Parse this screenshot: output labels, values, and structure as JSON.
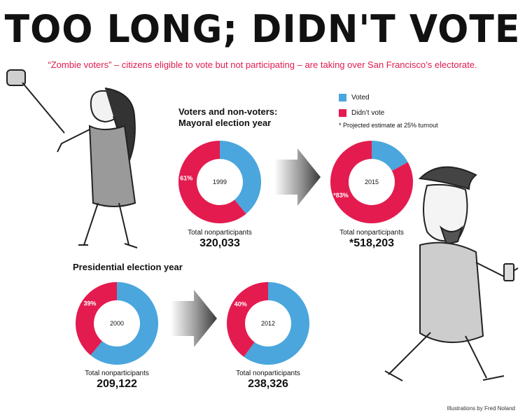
{
  "title": "TOO LONG; DIDN'T VOTE",
  "subtitle": "“Zombie voters” – citizens eligible to vote but not participating – are taking over San Francisco’s electorate.",
  "colors": {
    "voted": "#4aa6dd",
    "didnt_vote": "#e41b4f",
    "arrow": "#555555"
  },
  "legend": {
    "voted": "Voted",
    "didnt_vote": "Didn’t vote",
    "note": "* Projected estimate at 25% turnout"
  },
  "sections": {
    "mayoral": "Voters and non-voters: Mayoral election year",
    "presidential": "Presidential election year"
  },
  "total_label": "Total nonparticipants",
  "credit": "Illustrations by Fred Noland",
  "chart_data": [
    {
      "type": "pie",
      "group": "Mayoral election year",
      "year": "1999",
      "categories": [
        "Voted",
        "Didn’t vote"
      ],
      "values": [
        39,
        61
      ],
      "slice_labels": [
        "",
        "61%"
      ],
      "total_nonparticipants": "320,033"
    },
    {
      "type": "pie",
      "group": "Mayoral election year",
      "year": "2015",
      "categories": [
        "Voted",
        "Didn’t vote"
      ],
      "values": [
        17,
        83
      ],
      "slice_labels": [
        "",
        "*83%"
      ],
      "total_nonparticipants": "*518,203"
    },
    {
      "type": "pie",
      "group": "Presidential election year",
      "year": "2000",
      "categories": [
        "Voted",
        "Didn’t vote"
      ],
      "values": [
        61,
        39
      ],
      "slice_labels": [
        "",
        "39%"
      ],
      "total_nonparticipants": "209,122"
    },
    {
      "type": "pie",
      "group": "Presidential election year",
      "year": "2012",
      "categories": [
        "Voted",
        "Didn’t vote"
      ],
      "values": [
        60,
        40
      ],
      "slice_labels": [
        "",
        "40%"
      ],
      "total_nonparticipants": "238,326"
    }
  ]
}
